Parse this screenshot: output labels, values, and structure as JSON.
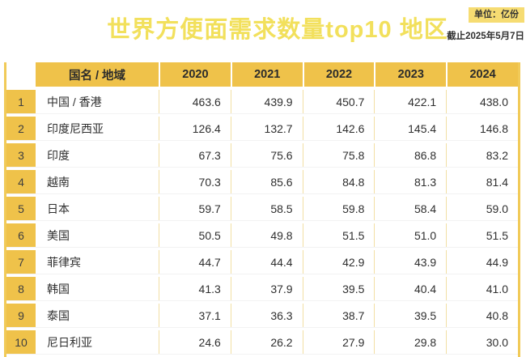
{
  "header": {
    "title": "世界方便面需求数量top10 地区",
    "unit_label": "单位：亿份",
    "as_of_date": "截止2025年5月7日"
  },
  "table": {
    "columns": [
      "国名 / 地域",
      "2020",
      "2021",
      "2022",
      "2023",
      "2024"
    ],
    "rows": [
      {
        "rank": "1",
        "region": "中国 / 香港",
        "values": [
          "463.6",
          "439.9",
          "450.7",
          "422.1",
          "438.0"
        ]
      },
      {
        "rank": "2",
        "region": "印度尼西亚",
        "values": [
          "126.4",
          "132.7",
          "142.6",
          "145.4",
          "146.8"
        ]
      },
      {
        "rank": "3",
        "region": "印度",
        "values": [
          "67.3",
          "75.6",
          "75.8",
          "86.8",
          "83.2"
        ]
      },
      {
        "rank": "4",
        "region": "越南",
        "values": [
          "70.3",
          "85.6",
          "84.8",
          "81.3",
          "81.4"
        ]
      },
      {
        "rank": "5",
        "region": "日本",
        "values": [
          "59.7",
          "58.5",
          "59.8",
          "58.4",
          "59.0"
        ]
      },
      {
        "rank": "6",
        "region": "美国",
        "values": [
          "50.5",
          "49.8",
          "51.5",
          "51.0",
          "51.5"
        ]
      },
      {
        "rank": "7",
        "region": "菲律宾",
        "values": [
          "44.7",
          "44.4",
          "42.9",
          "43.9",
          "44.9"
        ]
      },
      {
        "rank": "8",
        "region": "韩国",
        "values": [
          "41.3",
          "37.9",
          "39.5",
          "40.4",
          "41.0"
        ]
      },
      {
        "rank": "9",
        "region": "泰国",
        "values": [
          "37.1",
          "36.3",
          "38.7",
          "39.5",
          "40.8"
        ]
      },
      {
        "rank": "10",
        "region": "尼日利亚",
        "values": [
          "24.6",
          "26.2",
          "27.9",
          "29.8",
          "30.0"
        ]
      }
    ]
  },
  "colors": {
    "accent_gold": "#efc24a",
    "title_yellow": "#f2e05c",
    "badge_yellow": "#f6dc72",
    "cell_separator": "#f2dfa4",
    "table_border": "#f1ca58",
    "text_dark": "#2f2f2f"
  },
  "chart_data": {
    "type": "table",
    "title": "世界方便面需求数量top10 地区",
    "unit": "亿份",
    "as_of": "截止2025年5月7日",
    "categories": [
      "2020",
      "2021",
      "2022",
      "2023",
      "2024"
    ],
    "series": [
      {
        "name": "中国 / 香港",
        "values": [
          463.6,
          439.9,
          450.7,
          422.1,
          438.0
        ]
      },
      {
        "name": "印度尼西亚",
        "values": [
          126.4,
          132.7,
          142.6,
          145.4,
          146.8
        ]
      },
      {
        "name": "印度",
        "values": [
          67.3,
          75.6,
          75.8,
          86.8,
          83.2
        ]
      },
      {
        "name": "越南",
        "values": [
          70.3,
          85.6,
          84.8,
          81.3,
          81.4
        ]
      },
      {
        "name": "日本",
        "values": [
          59.7,
          58.5,
          59.8,
          58.4,
          59.0
        ]
      },
      {
        "name": "美国",
        "values": [
          50.5,
          49.8,
          51.5,
          51.0,
          51.5
        ]
      },
      {
        "name": "菲律宾",
        "values": [
          44.7,
          44.4,
          42.9,
          43.9,
          44.9
        ]
      },
      {
        "name": "韩国",
        "values": [
          41.3,
          37.9,
          39.5,
          40.4,
          41.0
        ]
      },
      {
        "name": "泰国",
        "values": [
          37.1,
          36.3,
          38.7,
          39.5,
          40.8
        ]
      },
      {
        "name": "尼日利亚",
        "values": [
          24.6,
          26.2,
          27.9,
          29.8,
          30.0
        ]
      }
    ]
  }
}
